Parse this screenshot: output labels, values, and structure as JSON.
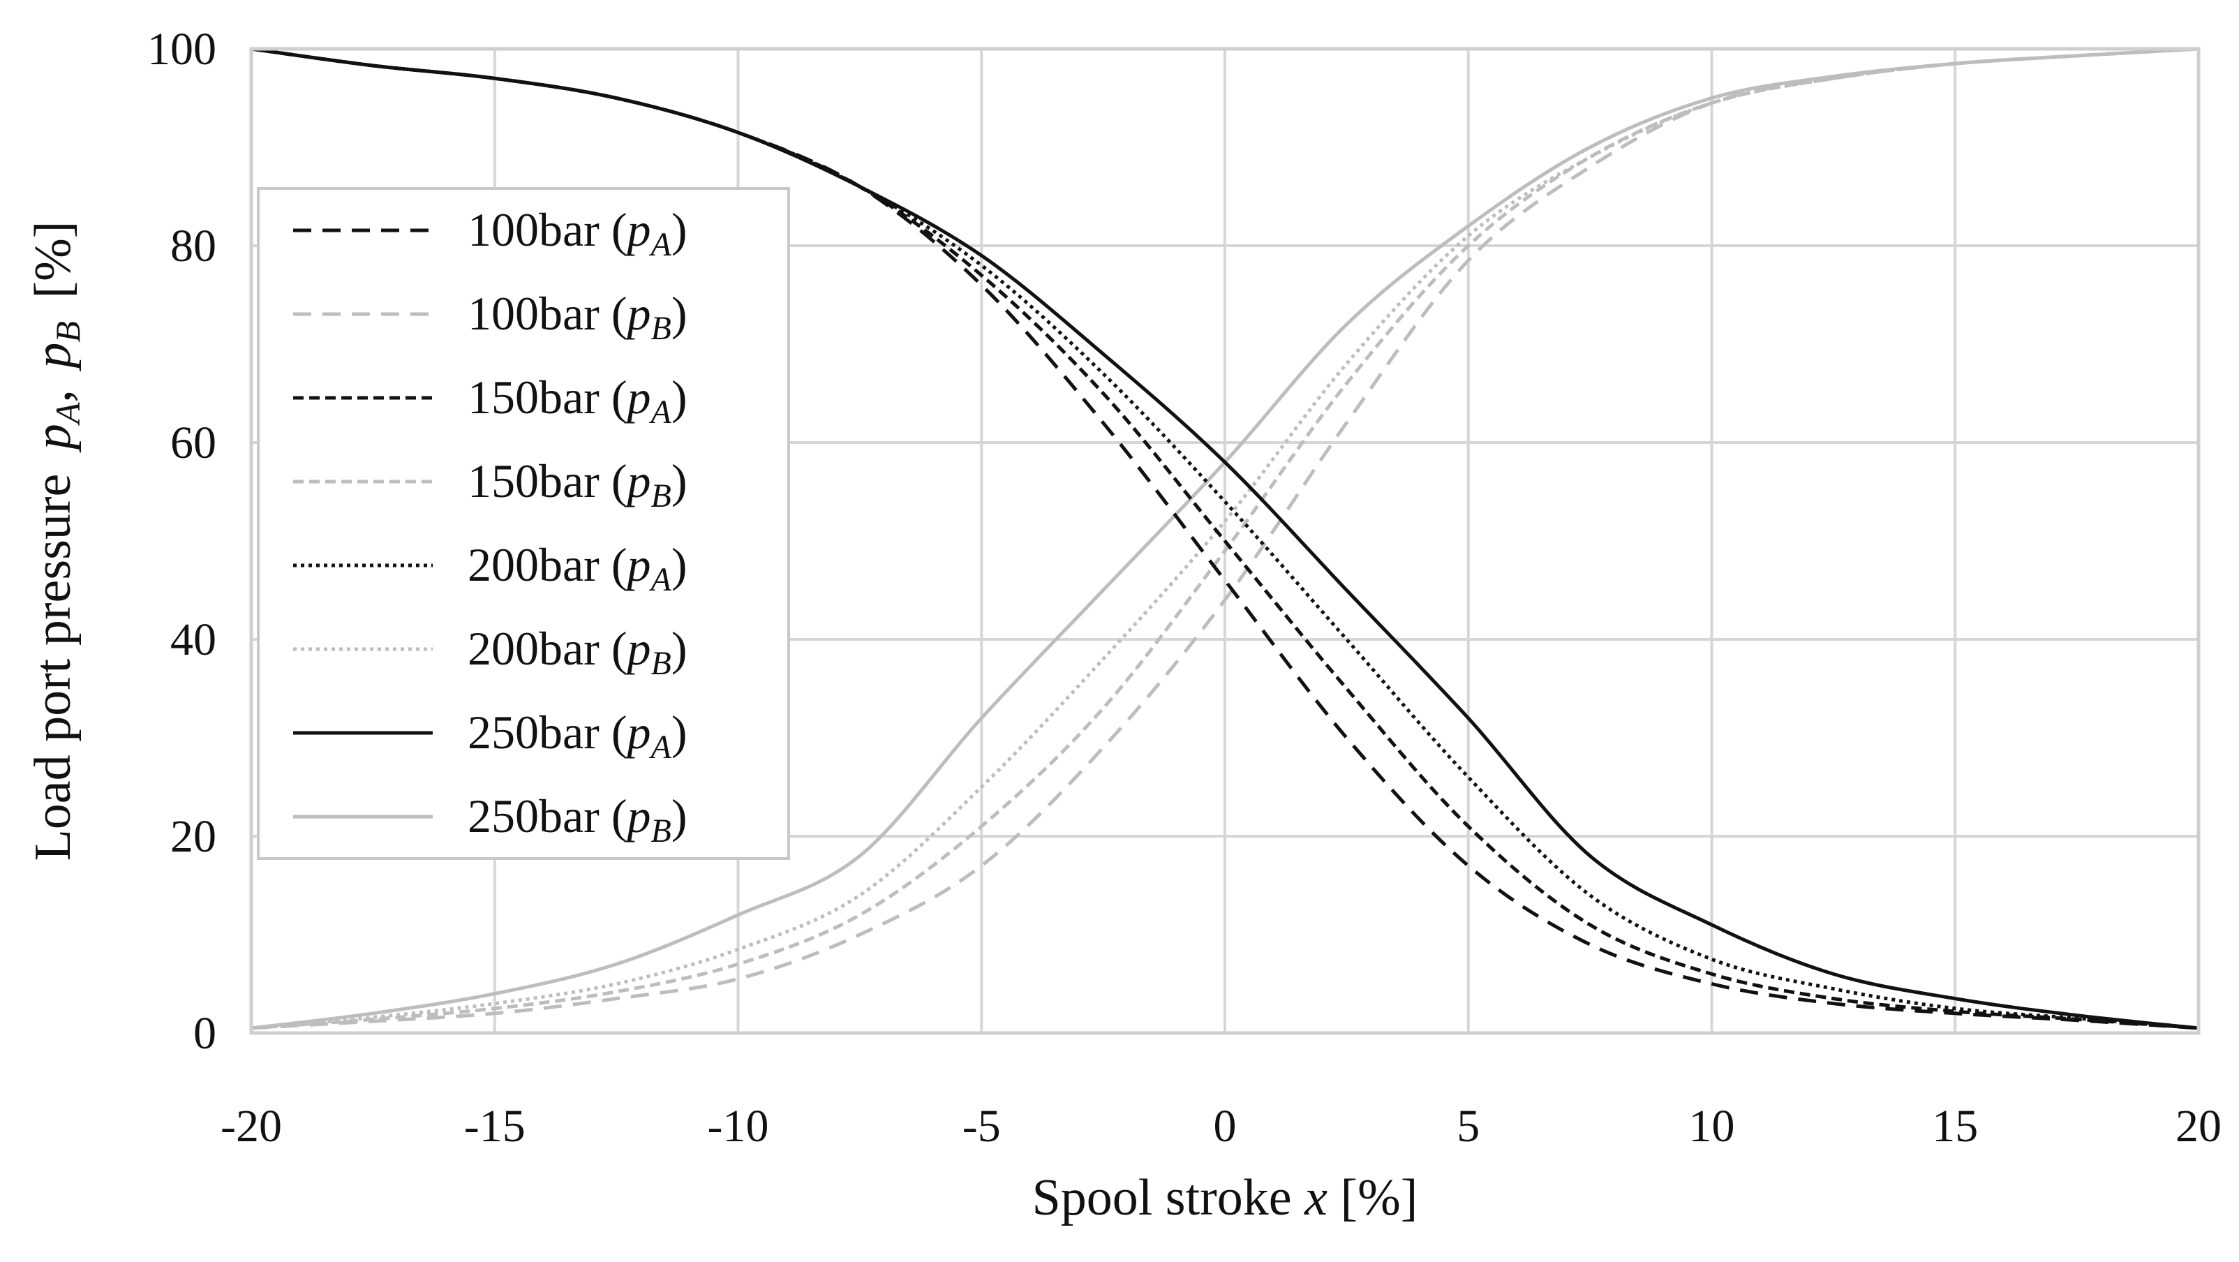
{
  "chart_data": {
    "type": "line",
    "title": "",
    "xlabel": "Spool stroke x [%]",
    "xlabel_parts": [
      "Spool stroke",
      "x",
      "[%]"
    ],
    "ylabel": "Load port pressure pA, pB [%]",
    "ylabel_parts": [
      "Load port pressure",
      "p",
      "A",
      ",",
      "p",
      "B",
      "[%]"
    ],
    "xlim": [
      -20,
      20
    ],
    "ylim": [
      0,
      100
    ],
    "grid": true,
    "legend_position": "upper-left",
    "x_ticks": [
      -20,
      -15,
      -10,
      -5,
      0,
      5,
      10,
      15,
      20
    ],
    "x_tick_labels": [
      "-20",
      "-15",
      "-10",
      "-5",
      "0",
      "5",
      "10",
      "15",
      "20"
    ],
    "y_ticks": [
      0,
      20,
      40,
      60,
      80,
      100
    ],
    "y_tick_labels": [
      "0",
      "20",
      "40",
      "60",
      "80",
      "100"
    ],
    "x": [
      -20,
      -17.5,
      -15,
      -12.5,
      -10,
      -7.5,
      -5,
      -2.5,
      0,
      2.5,
      5,
      7.5,
      10,
      12.5,
      15,
      17.5,
      20
    ],
    "series": [
      {
        "name": "100bar (pA)",
        "label": "100bar",
        "port": "A",
        "color": "#111111",
        "style": "dashed",
        "values": [
          100,
          98.3,
          97,
          95,
          91.5,
          86,
          76,
          62,
          46,
          30,
          17,
          9,
          5,
          3,
          2,
          1.3,
          0.5
        ]
      },
      {
        "name": "100bar (pB)",
        "label": "100bar",
        "port": "B",
        "color": "#bdbdbd",
        "style": "dashed",
        "values": [
          0.5,
          1.2,
          2,
          3.5,
          5.5,
          10,
          17,
          29,
          44,
          62,
          78.5,
          88,
          94.5,
          97,
          98.5,
          99.3,
          100
        ]
      },
      {
        "name": "150bar (pA)",
        "label": "150bar",
        "port": "A",
        "color": "#111111",
        "style": "short-dashed",
        "values": [
          100,
          98.3,
          97,
          95,
          91.5,
          86,
          77,
          65,
          50,
          35,
          21,
          11,
          6,
          3.5,
          2.2,
          1.4,
          0.5
        ]
      },
      {
        "name": "150bar (pB)",
        "label": "150bar",
        "port": "B",
        "color": "#bdbdbd",
        "style": "short-dashed",
        "values": [
          0.5,
          1.4,
          2.5,
          4.2,
          7,
          12,
          21,
          33,
          49,
          66,
          80,
          89,
          94.5,
          97,
          98.5,
          99.3,
          100
        ]
      },
      {
        "name": "200bar (pA)",
        "label": "200bar",
        "port": "A",
        "color": "#111111",
        "style": "dotted",
        "values": [
          100,
          98.3,
          97,
          95,
          91.5,
          86,
          78,
          67,
          54,
          40,
          26,
          14,
          7.5,
          4.5,
          2.5,
          1.5,
          0.5
        ]
      },
      {
        "name": "200bar (pB)",
        "label": "200bar",
        "port": "B",
        "color": "#bdbdbd",
        "style": "dotted",
        "values": [
          0.5,
          1.6,
          3,
          5,
          8.5,
          14,
          25,
          38,
          52,
          68,
          81,
          89,
          94.5,
          97,
          98.5,
          99.3,
          100
        ]
      },
      {
        "name": "250bar (pA)",
        "label": "250bar",
        "port": "A",
        "color": "#111111",
        "style": "solid",
        "values": [
          100,
          98.3,
          97,
          95,
          91.5,
          86,
          79,
          69,
          58,
          45,
          32,
          18,
          11,
          6,
          3.5,
          1.8,
          0.5
        ]
      },
      {
        "name": "250bar (pB)",
        "label": "250bar",
        "port": "B",
        "color": "#bdbdbd",
        "style": "solid",
        "values": [
          0.5,
          2,
          4,
          7,
          12,
          18,
          32,
          45,
          58,
          72,
          82,
          90,
          95,
          97.2,
          98.5,
          99.3,
          100
        ]
      }
    ]
  }
}
